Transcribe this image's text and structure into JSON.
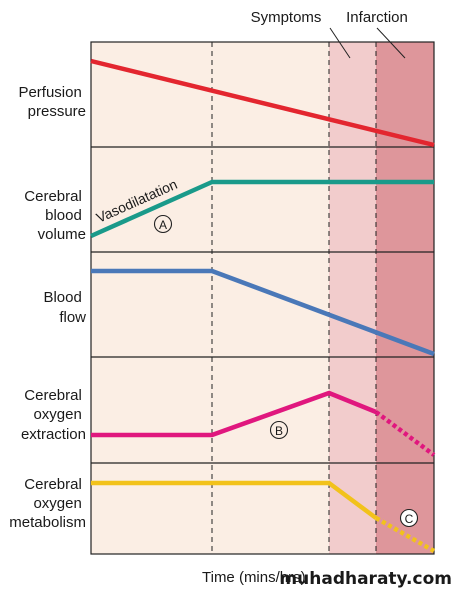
{
  "top_labels": {
    "symptoms": "Symptoms",
    "infarction": "Infarction"
  },
  "rows": [
    {
      "label_lines": [
        "Perfusion",
        "pressure"
      ],
      "line_color": "#e3262f"
    },
    {
      "label_lines": [
        "Cerebral",
        "blood",
        "volume"
      ],
      "line_color": "#1a9a8a"
    },
    {
      "label_lines": [
        "Blood",
        "flow"
      ],
      "line_color": "#4a78b8"
    },
    {
      "label_lines": [
        "Cerebral",
        "oxygen",
        "extraction"
      ],
      "line_color": "#e0177e"
    },
    {
      "label_lines": [
        "Cerebral",
        "oxygen",
        "metabolism"
      ],
      "line_color": "#f2c21b"
    }
  ],
  "annotations": {
    "vasodilatation": "Vasodilatation",
    "marker_a": "A",
    "marker_b": "B",
    "marker_c": "C"
  },
  "x_axis_label": "Time (mins/hrs)",
  "watermark": "muhadharaty.com",
  "colors": {
    "background": "#fbeee4",
    "symptoms_zone": "#f2cccc",
    "infarction_zone": "#de969b",
    "grid": "#222222"
  }
}
